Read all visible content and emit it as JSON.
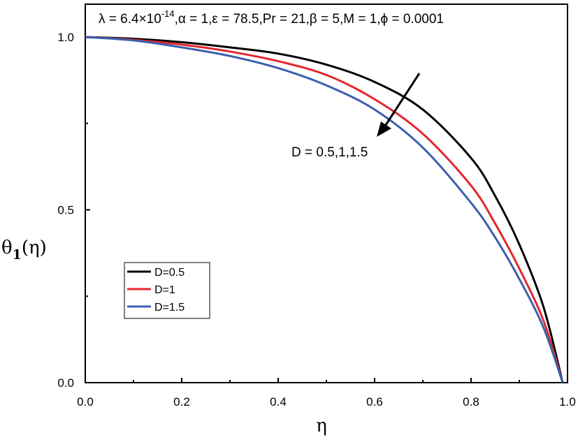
{
  "chart_data": {
    "type": "line",
    "title": "",
    "parameters": {
      "lambda_base": "λ = 6.4×10",
      "lambda_exp": "-14",
      "rest": ",α = 1,ε = 78.5,Pr = 21,β = 5,M = 1,ϕ = 0.0001"
    },
    "xlabel": "η",
    "ylabel": {
      "main": "θ",
      "sub": "1",
      "tail": "(η)"
    },
    "xlim": [
      0.0,
      1.0
    ],
    "ylim": [
      0.0,
      1.1
    ],
    "x_ticks": [
      "0.0",
      "0.2",
      "0.4",
      "0.6",
      "0.8",
      "1.0"
    ],
    "y_ticks": [
      "0.0",
      "0.5",
      "1.0"
    ],
    "annotation": "D = 0.5,1,1.5",
    "legend_position": "bottom-left",
    "grid": false,
    "x": [
      0.0,
      0.1,
      0.2,
      0.3,
      0.4,
      0.5,
      0.6,
      0.7,
      0.8,
      0.85,
      0.9,
      0.95,
      0.99
    ],
    "series": [
      {
        "name": "D=0.5",
        "color": "#000000",
        "values": [
          1.0,
          0.995,
          0.985,
          0.97,
          0.952,
          0.92,
          0.87,
          0.79,
          0.65,
          0.54,
          0.4,
          0.22,
          0.0
        ]
      },
      {
        "name": "D=1",
        "color": "#e3262d",
        "values": [
          1.0,
          0.992,
          0.978,
          0.958,
          0.93,
          0.89,
          0.82,
          0.72,
          0.57,
          0.46,
          0.33,
          0.18,
          0.0
        ]
      },
      {
        "name": "D=1.5",
        "color": "#3b5fae",
        "values": [
          1.0,
          0.99,
          0.97,
          0.945,
          0.91,
          0.86,
          0.79,
          0.68,
          0.52,
          0.42,
          0.3,
          0.16,
          0.0
        ]
      }
    ]
  }
}
